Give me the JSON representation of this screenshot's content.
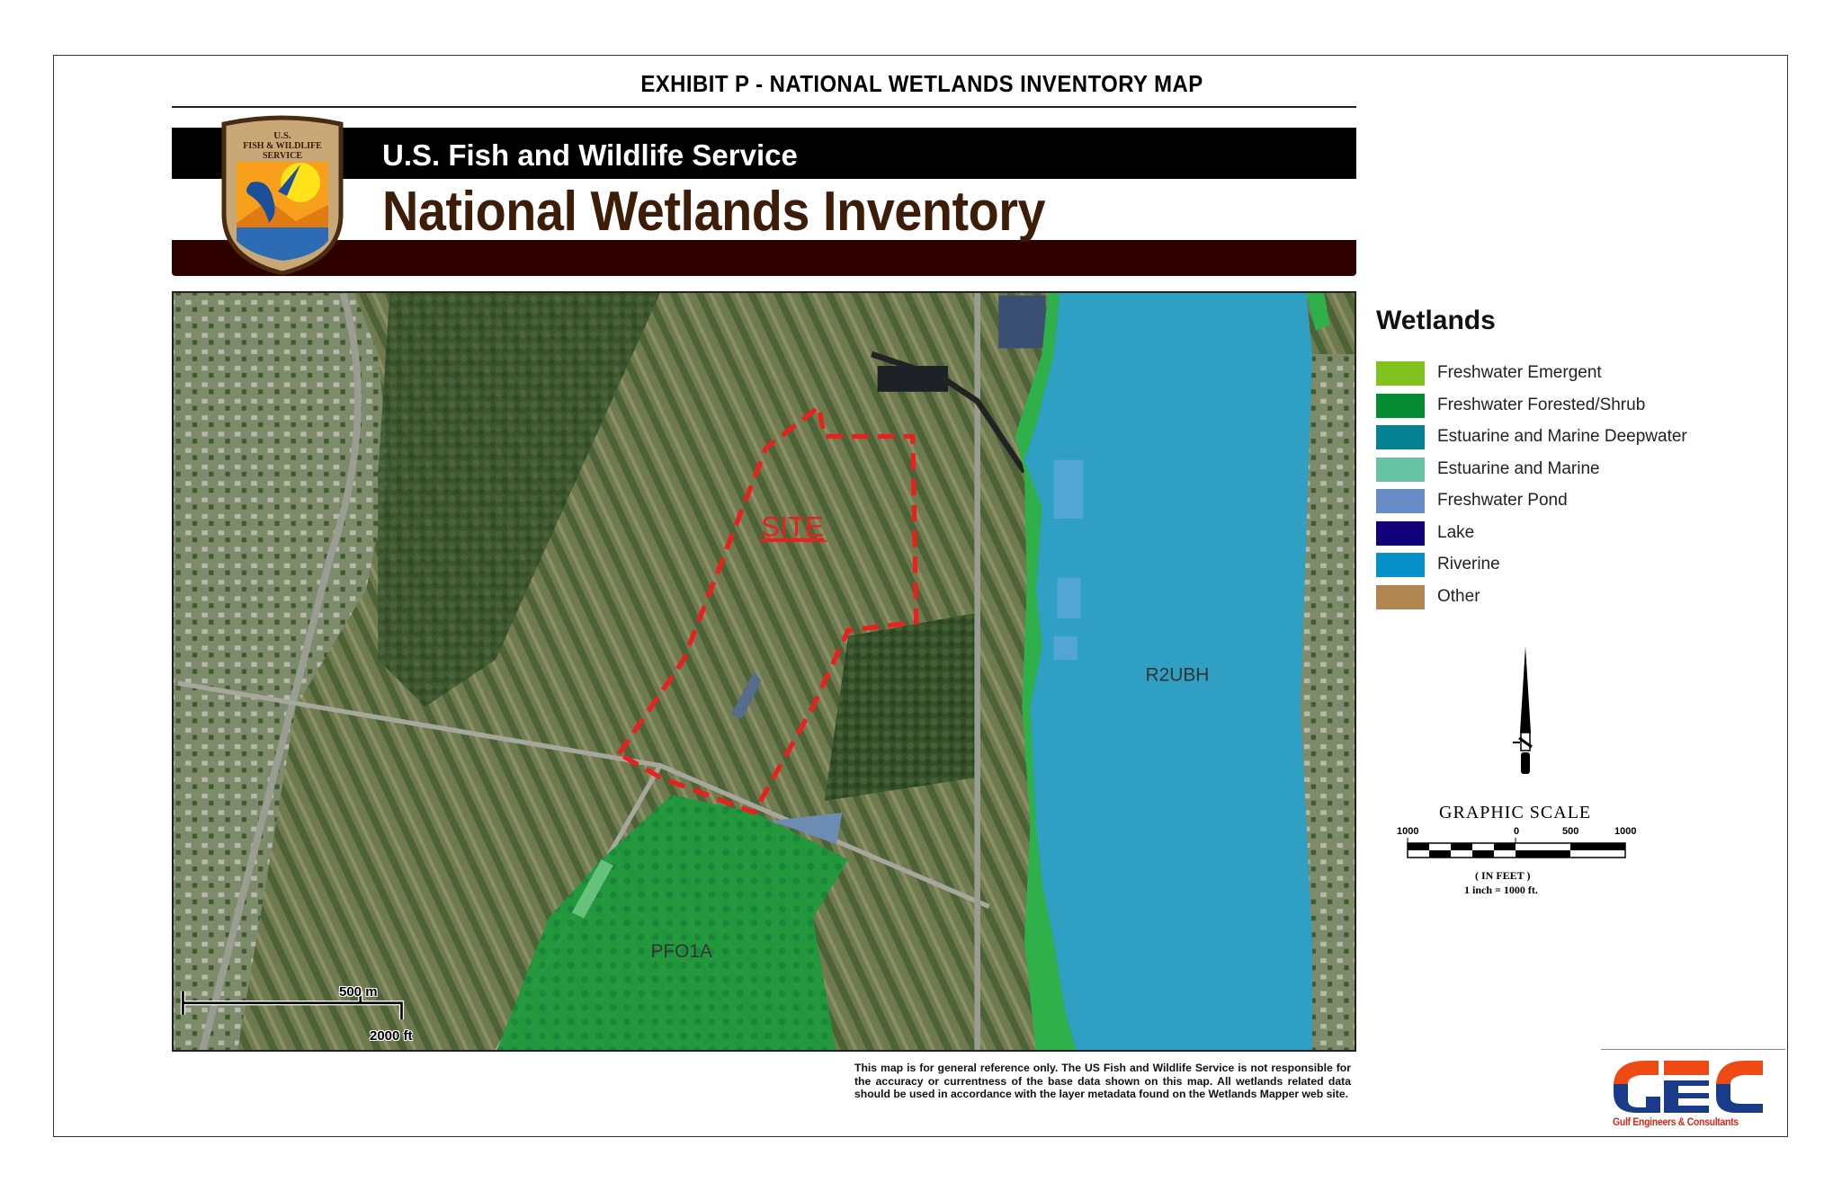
{
  "exhibit_title": "EXHIBIT P - NATIONAL  WETLANDS  INVENTORY   MAP",
  "banner": {
    "agency": "U.S. Fish and Wildlife Service",
    "product": "National Wetlands Inventory",
    "logo_text": "U.S. FISH & WILDLIFE SERVICE"
  },
  "map": {
    "site_label": "SITE",
    "river_label": "R2UBH",
    "forest_label": "PFO1A",
    "scale_metric": "500 m",
    "scale_imperial": "2000 ft",
    "colors": {
      "site_outline": "#e8201e",
      "riverine": "#2f9fc4",
      "forested": "#169c3a"
    }
  },
  "legend": {
    "title": "Wetlands",
    "items": [
      {
        "label": "Freshwater Emergent",
        "color": "#7fc31c"
      },
      {
        "label": "Freshwater Forested/Shrub",
        "color": "#068a32"
      },
      {
        "label": "Estuarine and Marine Deepwater",
        "color": "#058191"
      },
      {
        "label": "Estuarine and Marine",
        "color": "#66c2a3"
      },
      {
        "label": "Freshwater Pond",
        "color": "#688cc8"
      },
      {
        "label": "Lake",
        "color": "#12007a"
      },
      {
        "label": "Riverine",
        "color": "#0890c8"
      },
      {
        "label": "Other",
        "color": "#b28652"
      }
    ]
  },
  "graphic_scale": {
    "title": "GRAPHIC  SCALE",
    "ticks": [
      "1000",
      "0",
      "500",
      "1000"
    ],
    "units": "( IN  FEET )",
    "ratio": "1  inch  =  1000 ft."
  },
  "disclaimer": "This map is for general reference only. The US Fish and Wildlife Service is not responsible for the accuracy or currentness of the  base data shown on this map. All wetlands related data should be used in accordance with the layer metadata found on the Wetlands Mapper web site.",
  "company": {
    "logo": "GEC",
    "name": "Gulf Engineers & Consultants",
    "colors": {
      "red": "#f04a14",
      "blue": "#1a3a8a"
    }
  }
}
